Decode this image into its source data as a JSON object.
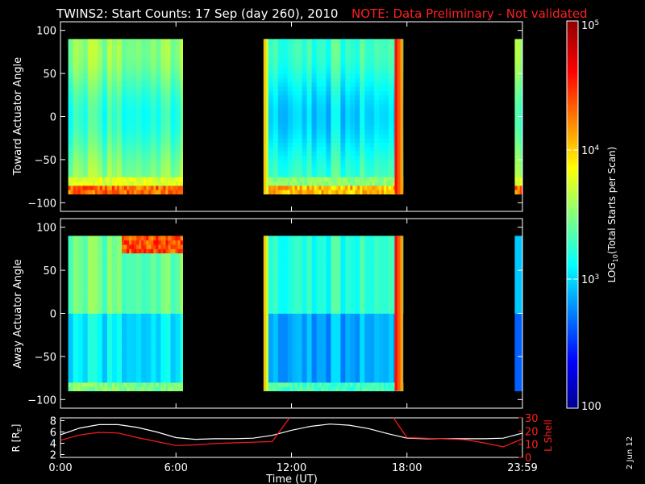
{
  "title": "TWINS2: Start Counts: 17 Sep (day 260), 2010",
  "note": "NOTE: Data Preliminary - Not validated",
  "note_color": "#ff2020",
  "date_stamp": "2 Jun 12",
  "colors": {
    "background": "#000000",
    "frame": "#ffffff",
    "radius_line": "#ffffff",
    "lshell_line": "#ff1a1a"
  },
  "chart_data": [
    {
      "type": "heatmap",
      "panel": "toward",
      "ylabel": "Toward Actuator Angle",
      "ylim": [
        -110,
        110
      ],
      "yticks": [
        "100",
        "50",
        "0",
        "-50",
        "-100"
      ],
      "xlim_hours": [
        0,
        24
      ],
      "angle_range": [
        -90,
        90
      ],
      "data_intervals_hours": [
        [
          0.4,
          6.35
        ],
        [
          10.55,
          17.8
        ],
        [
          23.6,
          24.0
        ]
      ],
      "colorscale_note": "log10 counts, blue=100 to red=1e5"
    },
    {
      "type": "heatmap",
      "panel": "away",
      "ylabel": "Away Actuator Angle",
      "ylim": [
        -110,
        110
      ],
      "yticks": [
        "100",
        "50",
        "0",
        "-50",
        "-100"
      ],
      "xlim_hours": [
        0,
        24
      ],
      "angle_range": [
        -90,
        90
      ],
      "data_intervals_hours": [
        [
          0.4,
          6.35
        ],
        [
          10.55,
          17.8
        ],
        [
          23.6,
          24.0
        ]
      ],
      "colorscale_note": "log10 counts, blue=100 to red=1e5"
    },
    {
      "type": "line",
      "panel": "orbit",
      "ylabel_left": "R [R",
      "ylabel_left_sub": "E",
      "ylabel_left_end": "]",
      "ylabel_right": "L Shell",
      "yticks_left": [
        "8",
        "6",
        "4",
        "2"
      ],
      "ylim_left": [
        1.5,
        8.5
      ],
      "yticks_right": [
        "30",
        "20",
        "10",
        "0"
      ],
      "ylim_right": [
        0,
        30
      ],
      "xlabel": "Time (UT)",
      "xticklabels": [
        "0:00",
        "6:00",
        "12:00",
        "18:00",
        "23:59"
      ],
      "xticks_hours": [
        0,
        6,
        12,
        18,
        24
      ],
      "series": [
        {
          "name": "R",
          "axis": "left",
          "color": "#ffffff",
          "x": [
            0,
            1,
            2,
            3,
            4,
            5,
            6,
            7,
            8,
            9,
            10,
            11,
            12,
            13,
            14,
            15,
            16,
            17,
            18,
            19,
            20,
            21,
            22,
            23,
            24
          ],
          "y": [
            5.5,
            6.7,
            7.3,
            7.3,
            6.8,
            6.0,
            5.0,
            4.7,
            4.8,
            4.8,
            4.9,
            5.4,
            6.3,
            7.0,
            7.4,
            7.2,
            6.6,
            5.7,
            4.9,
            4.8,
            4.8,
            4.8,
            4.8,
            4.9,
            5.8
          ]
        },
        {
          "name": "L Shell",
          "axis": "right",
          "color": "#ff1a1a",
          "x": [
            0,
            1,
            2,
            3,
            4,
            5,
            6,
            7,
            8,
            9,
            10,
            11,
            11.9,
            null,
            17.3,
            18,
            19,
            20,
            21,
            22,
            23,
            24
          ],
          "y": [
            13,
            17,
            19,
            18.5,
            15,
            12,
            9,
            9.5,
            10.5,
            11,
            11.5,
            12,
            30,
            null,
            30,
            15,
            14.5,
            14,
            13.5,
            11,
            8,
            14
          ]
        }
      ]
    }
  ],
  "colorbar": {
    "label": "LOG",
    "label_sub": "10",
    "label_rest": "(Total Starts per Scan)",
    "ticks": [
      {
        "text": "10",
        "sup": "5",
        "value": 100000
      },
      {
        "text": "10",
        "sup": "4",
        "value": 10000
      },
      {
        "text": "10",
        "sup": "3",
        "value": 1000
      },
      {
        "text": "100",
        "sup": "",
        "value": 100
      }
    ],
    "range": [
      100,
      100000
    ]
  }
}
